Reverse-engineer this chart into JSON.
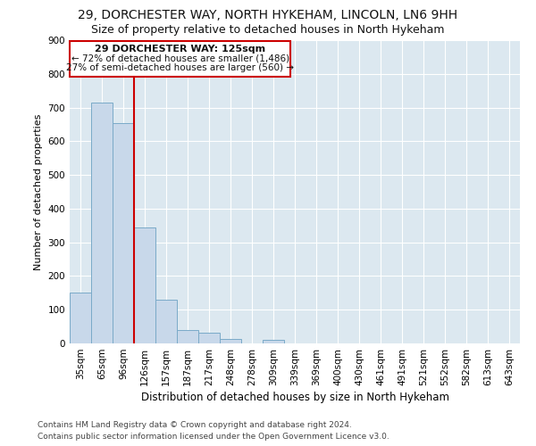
{
  "title": "29, DORCHESTER WAY, NORTH HYKEHAM, LINCOLN, LN6 9HH",
  "subtitle": "Size of property relative to detached houses in North Hykeham",
  "xlabel": "Distribution of detached houses by size in North Hykeham",
  "ylabel": "Number of detached properties",
  "categories": [
    "35sqm",
    "65sqm",
    "96sqm",
    "126sqm",
    "157sqm",
    "187sqm",
    "217sqm",
    "248sqm",
    "278sqm",
    "309sqm",
    "339sqm",
    "369sqm",
    "400sqm",
    "430sqm",
    "461sqm",
    "491sqm",
    "521sqm",
    "552sqm",
    "582sqm",
    "613sqm",
    "643sqm"
  ],
  "values": [
    150,
    715,
    655,
    343,
    130,
    40,
    33,
    12,
    0,
    10,
    0,
    0,
    0,
    0,
    0,
    0,
    0,
    0,
    0,
    0,
    0
  ],
  "bar_color": "#c8d8ea",
  "bar_edge_color": "#7aaac8",
  "marker_label": "29 DORCHESTER WAY: 125sqm",
  "annotation_line1": "← 72% of detached houses are smaller (1,486)",
  "annotation_line2": "27% of semi-detached houses are larger (560) →",
  "marker_color": "#cc0000",
  "ylim": [
    0,
    900
  ],
  "yticks": [
    0,
    100,
    200,
    300,
    400,
    500,
    600,
    700,
    800,
    900
  ],
  "footer_line1": "Contains HM Land Registry data © Crown copyright and database right 2024.",
  "footer_line2": "Contains public sector information licensed under the Open Government Licence v3.0.",
  "bg_color": "#ffffff",
  "plot_bg_color": "#dce8f0",
  "title_fontsize": 10,
  "subtitle_fontsize": 9,
  "tick_fontsize": 7.5,
  "ylabel_fontsize": 8,
  "xlabel_fontsize": 8.5
}
